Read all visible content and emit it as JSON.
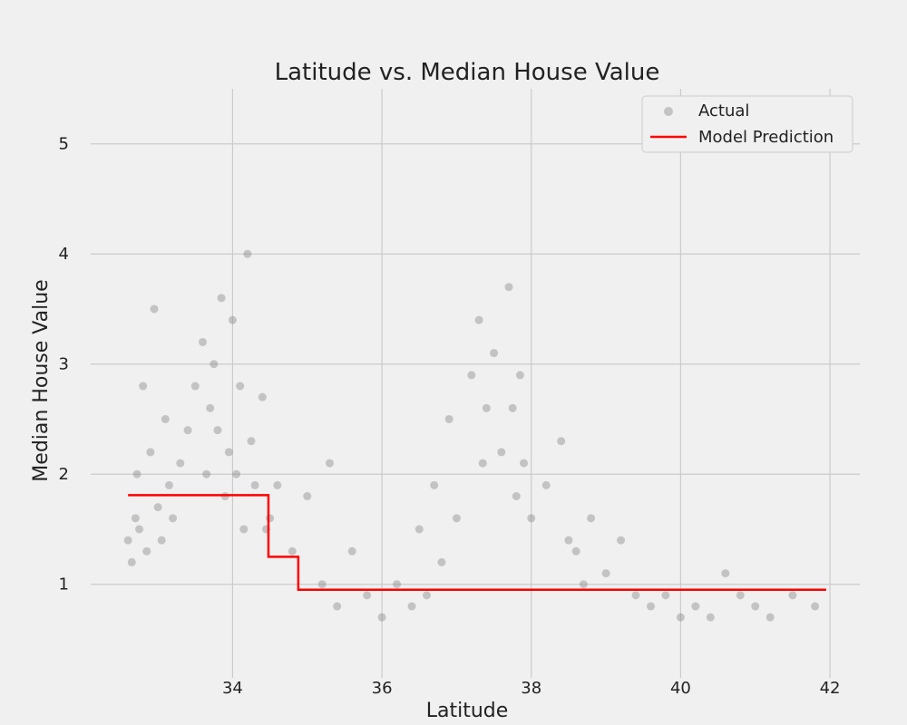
{
  "chart_data": {
    "type": "scatter",
    "title": "Latitude vs. Median House Value",
    "xlabel": "Latitude",
    "ylabel": "Median House Value",
    "xlim": [
      32.1,
      42.4
    ],
    "ylim": [
      0.15,
      5.5
    ],
    "x_ticks": [
      34,
      36,
      38,
      40,
      42
    ],
    "y_ticks": [
      1,
      2,
      3,
      4,
      5
    ],
    "grid": true,
    "legend_position": "top-right",
    "colors": {
      "actual": "#808080",
      "model": "#ff0000",
      "background": "#f0f0f0",
      "grid": "#cbcbcb"
    },
    "series": [
      {
        "name": "Actual",
        "kind": "scatter",
        "opacity": 0.4,
        "x": [
          32.6,
          32.65,
          32.7,
          32.72,
          32.75,
          32.8,
          32.85,
          32.9,
          32.95,
          33.0,
          33.05,
          33.1,
          33.15,
          33.2,
          33.3,
          33.4,
          33.5,
          33.6,
          33.65,
          33.7,
          33.75,
          33.8,
          33.85,
          33.9,
          33.95,
          34.0,
          34.05,
          34.1,
          34.15,
          34.2,
          34.25,
          34.3,
          34.4,
          34.45,
          34.5,
          34.6,
          34.8,
          35.0,
          35.2,
          35.3,
          35.4,
          35.6,
          35.8,
          36.0,
          36.2,
          36.4,
          36.5,
          36.6,
          36.7,
          36.8,
          36.9,
          37.0,
          37.2,
          37.3,
          37.35,
          37.4,
          37.5,
          37.6,
          37.7,
          37.75,
          37.8,
          37.85,
          37.9,
          38.0,
          38.2,
          38.4,
          38.5,
          38.6,
          38.7,
          38.8,
          39.0,
          39.2,
          39.4,
          39.6,
          39.8,
          40.0,
          40.2,
          40.4,
          40.6,
          40.8,
          41.0,
          41.2,
          41.5,
          41.8
        ],
        "y": [
          1.4,
          1.2,
          1.6,
          2.0,
          1.5,
          2.8,
          1.3,
          2.2,
          3.5,
          1.7,
          1.4,
          2.5,
          1.9,
          1.6,
          2.1,
          2.4,
          2.8,
          3.2,
          2.0,
          2.6,
          3.0,
          2.4,
          3.6,
          1.8,
          2.2,
          3.4,
          2.0,
          2.8,
          1.5,
          4.0,
          2.3,
          1.9,
          2.7,
          1.5,
          1.6,
          1.9,
          1.3,
          1.8,
          1.0,
          2.1,
          0.8,
          1.3,
          0.9,
          0.7,
          1.0,
          0.8,
          1.5,
          0.9,
          1.9,
          1.2,
          2.5,
          1.6,
          2.9,
          3.4,
          2.1,
          2.6,
          3.1,
          2.2,
          3.7,
          2.6,
          1.8,
          2.9,
          2.1,
          1.6,
          1.9,
          2.3,
          1.4,
          1.3,
          1.0,
          1.6,
          1.1,
          1.4,
          0.9,
          0.8,
          0.9,
          0.7,
          0.8,
          0.7,
          1.1,
          0.9,
          0.8,
          0.7,
          0.9,
          0.8
        ]
      },
      {
        "name": "Model Prediction",
        "kind": "step",
        "x": [
          32.6,
          34.48,
          34.48,
          34.88,
          34.88,
          41.95
        ],
        "y": [
          1.81,
          1.81,
          1.25,
          1.25,
          0.95,
          0.95
        ]
      }
    ]
  }
}
